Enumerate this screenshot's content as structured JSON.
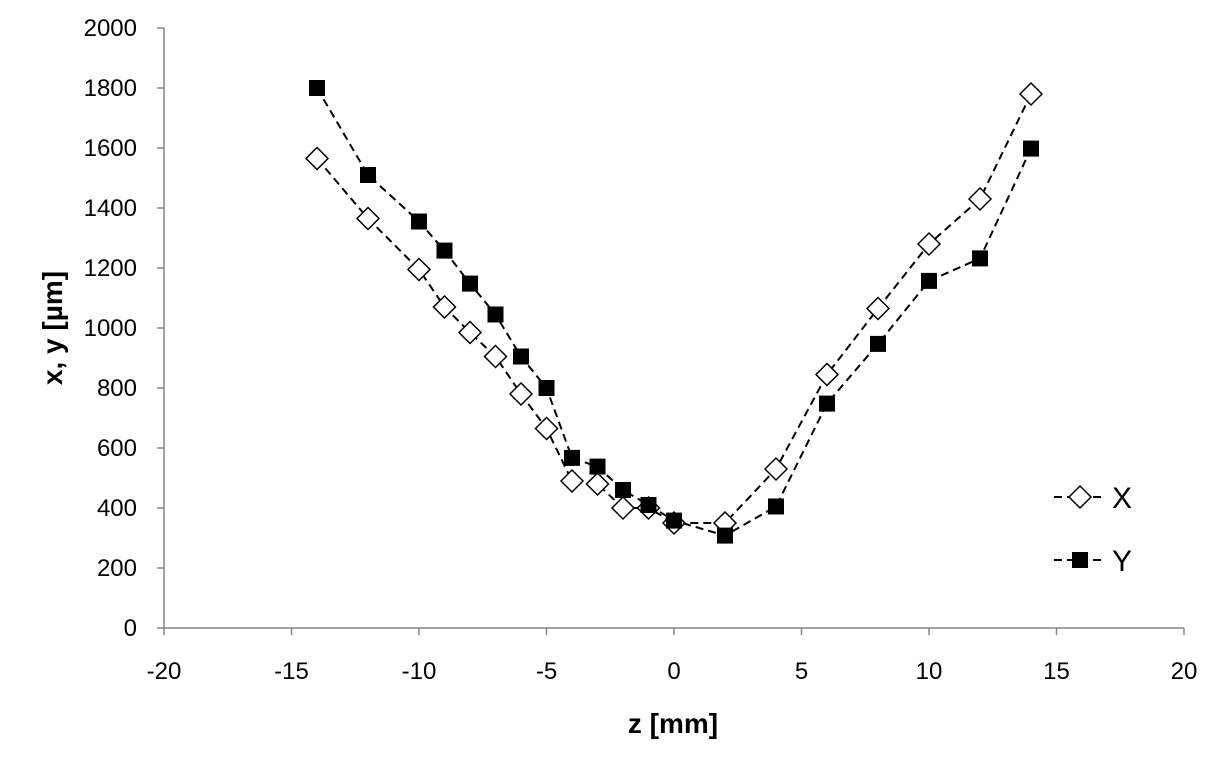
{
  "chart_data": {
    "type": "scatter",
    "title": "",
    "xlabel": "z [mm]",
    "ylabel": "x, y [µm]",
    "xlim": [
      -20,
      20
    ],
    "ylim": [
      0,
      2000
    ],
    "x_ticks": [
      -20,
      -15,
      -10,
      -5,
      0,
      5,
      10,
      15,
      20
    ],
    "y_ticks": [
      0,
      200,
      400,
      600,
      800,
      1000,
      1200,
      1400,
      1600,
      1800,
      2000
    ],
    "grid": false,
    "legend_position": "right",
    "line_style": "dashed",
    "series": [
      {
        "name": "X",
        "marker": "open-diamond",
        "color": "#000000",
        "points": [
          {
            "x": -14,
            "y": 1565
          },
          {
            "x": -12,
            "y": 1365
          },
          {
            "x": -10,
            "y": 1195
          },
          {
            "x": -9,
            "y": 1070
          },
          {
            "x": -8,
            "y": 985
          },
          {
            "x": -7,
            "y": 905
          },
          {
            "x": -6,
            "y": 780
          },
          {
            "x": -5,
            "y": 665
          },
          {
            "x": -4,
            "y": 490
          },
          {
            "x": -3,
            "y": 480
          },
          {
            "x": -2,
            "y": 400
          },
          {
            "x": -1,
            "y": 400
          },
          {
            "x": 0,
            "y": 350
          },
          {
            "x": 2,
            "y": 350
          },
          {
            "x": 4,
            "y": 530
          },
          {
            "x": 6,
            "y": 845
          },
          {
            "x": 8,
            "y": 1065
          },
          {
            "x": 10,
            "y": 1280
          },
          {
            "x": 12,
            "y": 1430
          },
          {
            "x": 14,
            "y": 1780
          }
        ]
      },
      {
        "name": "Y",
        "marker": "filled-square",
        "color": "#000000",
        "points": [
          {
            "x": -14,
            "y": 1800
          },
          {
            "x": -12,
            "y": 1510
          },
          {
            "x": -10,
            "y": 1355
          },
          {
            "x": -9,
            "y": 1258
          },
          {
            "x": -8,
            "y": 1148
          },
          {
            "x": -7,
            "y": 1045
          },
          {
            "x": -6,
            "y": 905
          },
          {
            "x": -5,
            "y": 800
          },
          {
            "x": -4,
            "y": 567
          },
          {
            "x": -3,
            "y": 538
          },
          {
            "x": -2,
            "y": 460
          },
          {
            "x": -1,
            "y": 410
          },
          {
            "x": 0,
            "y": 358
          },
          {
            "x": 2,
            "y": 308
          },
          {
            "x": 4,
            "y": 405
          },
          {
            "x": 6,
            "y": 748
          },
          {
            "x": 8,
            "y": 947
          },
          {
            "x": 10,
            "y": 1157
          },
          {
            "x": 12,
            "y": 1232
          },
          {
            "x": 14,
            "y": 1598
          }
        ]
      }
    ]
  }
}
